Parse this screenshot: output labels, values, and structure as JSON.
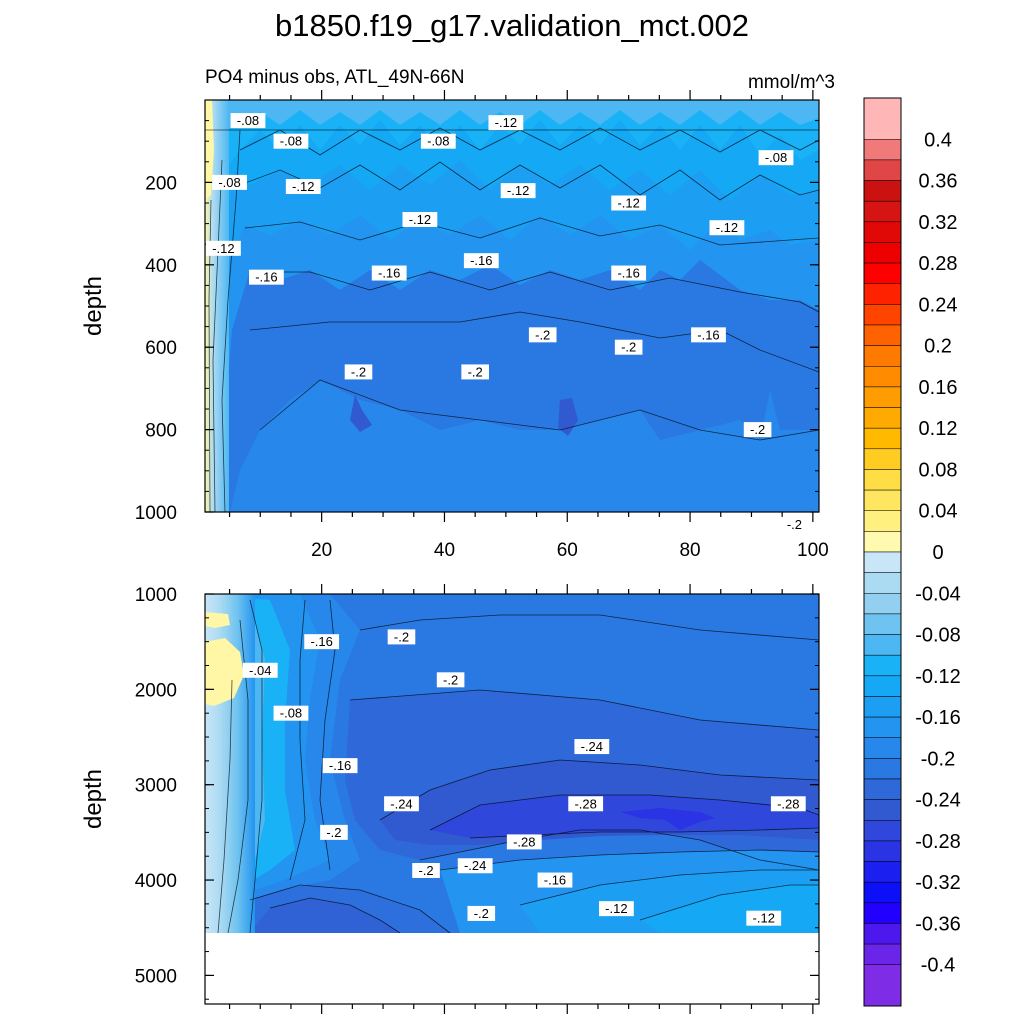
{
  "chart_data": {
    "type": "heatmap",
    "title": "b1850.f19_g17.validation_mct.002",
    "subtitle_left": "PO4 minus obs, ATL_49N-66N",
    "subtitle_right": "mmol/m^3",
    "panels": [
      {
        "name": "upper",
        "ylabel": "depth",
        "ylim": [
          0,
          1000
        ],
        "xlim": [
          1,
          101
        ],
        "x_ticks": [
          20,
          40,
          60,
          80,
          100
        ],
        "y_ticks": [
          200,
          400,
          600,
          800,
          1000
        ],
        "contour_labels": [
          {
            "text": "-.08",
            "x": 8,
            "y": 50
          },
          {
            "text": "-.08",
            "x": 15,
            "y": 100
          },
          {
            "text": "-.12",
            "x": 50,
            "y": 55
          },
          {
            "text": "-.08",
            "x": 39,
            "y": 100
          },
          {
            "text": "-.12",
            "x": 52,
            "y": 220
          },
          {
            "text": "-.08",
            "x": 94,
            "y": 140
          },
          {
            "text": "-.08",
            "x": 5,
            "y": 200
          },
          {
            "text": "-.12",
            "x": 17,
            "y": 210
          },
          {
            "text": "-.12",
            "x": 36,
            "y": 290
          },
          {
            "text": "-.12",
            "x": 70,
            "y": 250
          },
          {
            "text": "-.12",
            "x": 86,
            "y": 310
          },
          {
            "text": "-.12",
            "x": 4,
            "y": 360
          },
          {
            "text": "-.16",
            "x": 11,
            "y": 430
          },
          {
            "text": "-.16",
            "x": 31,
            "y": 420
          },
          {
            "text": "-.16",
            "x": 46,
            "y": 390
          },
          {
            "text": "-.16",
            "x": 70,
            "y": 420
          },
          {
            "text": "-.16",
            "x": 83,
            "y": 570
          },
          {
            "text": "-.2",
            "x": 56,
            "y": 570
          },
          {
            "text": "-.2",
            "x": 70,
            "y": 600
          },
          {
            "text": "-.2",
            "x": 26,
            "y": 660
          },
          {
            "text": "-.2",
            "x": 45,
            "y": 660
          },
          {
            "text": "-.2",
            "x": 91,
            "y": 800
          },
          {
            "text": "-.2",
            "x": 97,
            "y": 1030
          }
        ]
      },
      {
        "name": "lower",
        "ylabel": "depth",
        "ylim": [
          1000,
          5300
        ],
        "xlim": [
          1,
          101
        ],
        "y_ticks": [
          1000,
          2000,
          3000,
          4000,
          5000
        ],
        "bottom_depth": 4625,
        "contour_labels": [
          {
            "text": "-.16",
            "x": 20,
            "y": 1500
          },
          {
            "text": "-.2",
            "x": 33,
            "y": 1450
          },
          {
            "text": "-.04",
            "x": 10,
            "y": 1800
          },
          {
            "text": "-.2",
            "x": 41,
            "y": 1900
          },
          {
            "text": "-.08",
            "x": 15,
            "y": 2250
          },
          {
            "text": "-.16",
            "x": 23,
            "y": 2800
          },
          {
            "text": "-.24",
            "x": 64,
            "y": 2600
          },
          {
            "text": "-.24",
            "x": 33,
            "y": 3200
          },
          {
            "text": "-.28",
            "x": 63,
            "y": 3200
          },
          {
            "text": "-.28",
            "x": 96,
            "y": 3200
          },
          {
            "text": "-.2",
            "x": 22,
            "y": 3500
          },
          {
            "text": "-.28",
            "x": 53,
            "y": 3600
          },
          {
            "text": "-.24",
            "x": 45,
            "y": 3850
          },
          {
            "text": "-.2",
            "x": 37,
            "y": 3900
          },
          {
            "text": "-.16",
            "x": 58,
            "y": 4000
          },
          {
            "text": "-.12",
            "x": 68,
            "y": 4300
          },
          {
            "text": "-.2",
            "x": 46,
            "y": 4350
          },
          {
            "text": "-.12",
            "x": 92,
            "y": 4400
          }
        ]
      }
    ],
    "colorbar": {
      "levels": [
        0.44,
        0.4,
        0.38,
        0.36,
        0.34,
        0.32,
        0.3,
        0.28,
        0.26,
        0.24,
        0.22,
        0.2,
        0.18,
        0.16,
        0.14,
        0.12,
        0.1,
        0.08,
        0.06,
        0.04,
        0.02,
        0,
        -0.02,
        -0.04,
        -0.06,
        -0.08,
        -0.1,
        -0.12,
        -0.14,
        -0.16,
        -0.18,
        -0.2,
        -0.22,
        -0.24,
        -0.26,
        -0.28,
        -0.3,
        -0.32,
        -0.34,
        -0.36,
        -0.38,
        -0.4,
        -0.44
      ],
      "colors": [
        "#ffb6b6",
        "#f07a7a",
        "#e14646",
        "#cc1111",
        "#d71414",
        "#e10808",
        "#ee0000",
        "#ff0000",
        "#ff2200",
        "#ff4400",
        "#ff6200",
        "#ff7a00",
        "#ff8c00",
        "#ff9c00",
        "#ffaa00",
        "#ffba00",
        "#ffcc22",
        "#ffdd44",
        "#ffe660",
        "#fff080",
        "#fffab0",
        "#c8e6f7",
        "#abdaf3",
        "#93cff0",
        "#6fc3f0",
        "#4cb7f2",
        "#19b2f7",
        "#14a8f5",
        "#1c9ff3",
        "#2394f0",
        "#2787ea",
        "#2a78e1",
        "#2f68d8",
        "#3159d0",
        "#2f47da",
        "#2a34e5",
        "#1b1ff0",
        "#0d0ff8",
        "#2200ff",
        "#4d18ee",
        "#6a25e8",
        "#7f2ce6"
      ],
      "tick_labels": [
        "0.4",
        "0.36",
        "0.32",
        "0.28",
        "0.24",
        "0.2",
        "0.16",
        "0.12",
        "0.08",
        "0.04",
        "0",
        "-0.04",
        "-0.08",
        "-0.12",
        "-0.16",
        "-0.2",
        "-0.24",
        "-0.28",
        "-0.32",
        "-0.36",
        "-0.4"
      ]
    }
  }
}
